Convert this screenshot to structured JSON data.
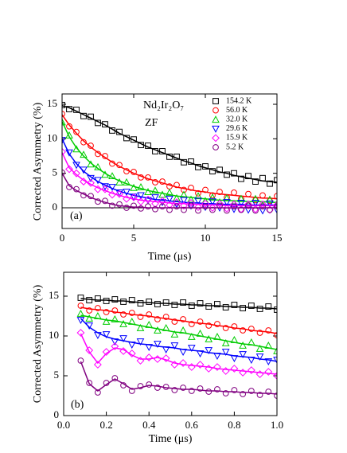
{
  "chart_data": [
    {
      "type": "scatter",
      "xlabel": "Time (μs)",
      "ylabel": "Corrected Asymmetry (%)",
      "annotations": [
        "Nd₂Ir₂O₇",
        "ZF",
        "(a)"
      ],
      "legend": "upper right",
      "xlim": [
        0,
        15
      ],
      "ylim": [
        -3,
        16.5
      ],
      "xticks": [
        0,
        5,
        10,
        15
      ],
      "yticks": [
        0,
        5,
        10,
        15
      ],
      "zero_line": true,
      "x": [
        0,
        0.5,
        1,
        1.5,
        2,
        2.5,
        3,
        3.5,
        4,
        4.5,
        5,
        5.5,
        6,
        6.5,
        7,
        7.5,
        8,
        8.5,
        9,
        9.5,
        10,
        10.5,
        11,
        11.5,
        12,
        12.5,
        13,
        13.5,
        14,
        14.5,
        15
      ],
      "series": [
        {
          "name": "154.2 K",
          "color": "#000000",
          "marker": "square",
          "values": [
            14.9,
            14.3,
            14.2,
            13.3,
            13.2,
            12.3,
            12.1,
            11.2,
            11.0,
            10.1,
            9.9,
            9.1,
            9.0,
            8.2,
            8.2,
            7.4,
            7.4,
            6.6,
            6.7,
            5.9,
            6.0,
            5.3,
            5.5,
            4.8,
            5.0,
            4.2,
            4.6,
            3.8,
            4.3,
            3.5,
            4.0
          ],
          "fit": [
            14.8,
            14.5,
            14.0,
            13.5,
            13.0,
            12.5,
            12.0,
            11.4,
            10.8,
            10.3,
            9.8,
            9.3,
            8.8,
            8.4,
            8.0,
            7.6,
            7.2,
            6.8,
            6.5,
            6.1,
            5.8,
            5.5,
            5.2,
            5.0,
            4.7,
            4.5,
            4.3,
            4.1,
            3.9,
            3.8,
            3.7
          ]
        },
        {
          "name": "56.0 K",
          "color": "#ff0000",
          "marker": "circle",
          "values": [
            13.6,
            11.8,
            11.0,
            9.5,
            9.0,
            7.8,
            7.5,
            6.4,
            6.2,
            5.3,
            5.2,
            4.4,
            4.4,
            3.7,
            3.8,
            3.1,
            3.3,
            2.6,
            2.9,
            2.1,
            2.6,
            1.8,
            2.3,
            1.5,
            2.2,
            1.3,
            2.0,
            1.1,
            1.8,
            1.0,
            1.7
          ],
          "fit": [
            13.5,
            12.0,
            10.8,
            9.7,
            8.8,
            8.0,
            7.3,
            6.6,
            6.0,
            5.5,
            5.0,
            4.6,
            4.2,
            3.9,
            3.6,
            3.3,
            3.0,
            2.8,
            2.6,
            2.4,
            2.3,
            2.1,
            2.0,
            1.9,
            1.8,
            1.7,
            1.6,
            1.5,
            1.4,
            1.4,
            1.3
          ]
        },
        {
          "name": "32.0 K",
          "color": "#00cc00",
          "marker": "triangle-up",
          "values": [
            12.4,
            10.5,
            8.5,
            7.7,
            6.3,
            5.9,
            4.8,
            4.6,
            3.7,
            3.7,
            2.9,
            3.0,
            2.3,
            2.5,
            1.9,
            2.2,
            1.4,
            1.9,
            1.2,
            1.7,
            1.0,
            1.5,
            0.8,
            1.4,
            0.6,
            1.3,
            0.5,
            1.3,
            0.4,
            1.2,
            0.5
          ],
          "fit": [
            12.5,
            10.3,
            8.7,
            7.5,
            6.5,
            5.7,
            5.0,
            4.4,
            3.9,
            3.5,
            3.1,
            2.8,
            2.5,
            2.3,
            2.1,
            1.9,
            1.7,
            1.6,
            1.5,
            1.4,
            1.3,
            1.2,
            1.1,
            1.1,
            1.0,
            1.0,
            0.9,
            0.9,
            0.9,
            0.8,
            0.8
          ]
        },
        {
          "name": "29.6 K",
          "color": "#0000ff",
          "marker": "triangle-down",
          "values": [
            9.8,
            8.0,
            6.2,
            5.5,
            4.3,
            4.0,
            3.1,
            3.0,
            2.2,
            2.3,
            1.6,
            1.8,
            1.1,
            1.5,
            0.8,
            1.3,
            0.5,
            1.1,
            0.3,
            1.0,
            0.1,
            0.9,
            0,
            0.8,
            -0.2,
            0.7,
            -0.3,
            0.7,
            -0.4,
            0.6,
            -0.3
          ],
          "fit": [
            10.0,
            7.8,
            6.4,
            5.3,
            4.5,
            3.8,
            3.3,
            2.8,
            2.4,
            2.1,
            1.8,
            1.6,
            1.4,
            1.2,
            1.1,
            1.0,
            0.9,
            0.8,
            0.7,
            0.7,
            0.6,
            0.6,
            0.5,
            0.5,
            0.5,
            0.5,
            0.4,
            0.4,
            0.4,
            0.4,
            0.4
          ]
        },
        {
          "name": "15.9 K",
          "color": "#ff00ff",
          "marker": "diamond",
          "values": [
            8.1,
            5.6,
            5.0,
            3.8,
            3.6,
            2.7,
            2.7,
            1.9,
            2.0,
            1.3,
            1.5,
            0.9,
            1.2,
            0.6,
            1.0,
            0.4,
            0.8,
            0.3,
            0.7,
            0.1,
            0.6,
            0,
            0.6,
            -0.1,
            0.5,
            -0.2,
            0.5,
            -0.2,
            0.5,
            -0.3,
            0.4
          ],
          "fit": [
            8.0,
            5.8,
            4.8,
            4.0,
            3.4,
            2.9,
            2.5,
            2.1,
            1.8,
            1.5,
            1.3,
            1.1,
            1.0,
            0.9,
            0.8,
            0.7,
            0.6,
            0.6,
            0.5,
            0.5,
            0.4,
            0.4,
            0.4,
            0.3,
            0.3,
            0.3,
            0.3,
            0.3,
            0.3,
            0.3,
            0.3
          ]
        },
        {
          "name": "5.2 K",
          "color": "#800080",
          "marker": "circle",
          "values": [
            5.1,
            3.0,
            2.7,
            1.8,
            1.7,
            0.9,
            1.0,
            0.3,
            0.5,
            0,
            0.3,
            -0.1,
            0.2,
            -0.2,
            0.2,
            -0.3,
            0.2,
            -0.3,
            0.3,
            -0.4,
            0.2,
            -0.3,
            0.3,
            -0.4,
            0.2,
            -0.3,
            0.3,
            -0.4,
            0.2,
            -0.3,
            0.2
          ],
          "fit": [
            5.0,
            3.2,
            2.5,
            2.0,
            1.5,
            1.1,
            0.8,
            0.5,
            0.3,
            0.2,
            0.1,
            0.1,
            0,
            0,
            0,
            0,
            0,
            0,
            0,
            0,
            0,
            0,
            0,
            0,
            0,
            0,
            0,
            0,
            0,
            0,
            0
          ]
        }
      ]
    },
    {
      "type": "scatter",
      "xlabel": "Time (μs)",
      "ylabel": "Corrected Asymmetry (%)",
      "annotations": [
        "(b)"
      ],
      "xlim": [
        0,
        1
      ],
      "ylim": [
        0,
        18
      ],
      "xticks": [
        {
          "value": 0,
          "label": "0.0"
        },
        0.2,
        0.4,
        0.6,
        0.8,
        {
          "value": 1,
          "label": "1.0"
        }
      ],
      "yticks": [
        0,
        5,
        10,
        15
      ],
      "x": [
        0.08,
        0.12,
        0.16,
        0.2,
        0.24,
        0.28,
        0.32,
        0.36,
        0.4,
        0.44,
        0.48,
        0.52,
        0.56,
        0.6,
        0.64,
        0.68,
        0.72,
        0.76,
        0.8,
        0.84,
        0.88,
        0.92,
        0.96,
        1.0
      ],
      "series": [
        {
          "color": "#000000",
          "marker": "square",
          "values": [
            14.8,
            14.5,
            14.7,
            14.4,
            14.6,
            14.3,
            14.5,
            14.1,
            14.3,
            14.0,
            14.2,
            13.9,
            14.2,
            13.8,
            14.1,
            13.7,
            14.0,
            13.6,
            13.9,
            13.5,
            13.8,
            13.4,
            13.7,
            13.3
          ],
          "fit": [
            14.7,
            14.6,
            14.5,
            14.5,
            14.4,
            14.4,
            14.3,
            14.2,
            14.2,
            14.1,
            14.1,
            14.0,
            14.0,
            13.9,
            13.9,
            13.8,
            13.8,
            13.7,
            13.7,
            13.6,
            13.6,
            13.5,
            13.5,
            13.4
          ]
        },
        {
          "color": "#ff0000",
          "marker": "circle",
          "values": [
            13.8,
            13.2,
            13.5,
            13.0,
            13.2,
            12.7,
            12.9,
            12.4,
            12.7,
            12.1,
            12.4,
            11.8,
            12.1,
            11.5,
            11.8,
            11.3,
            11.5,
            11.0,
            11.2,
            10.7,
            10.9,
            10.4,
            10.7,
            10.1
          ],
          "fit": [
            13.6,
            13.4,
            13.3,
            13.2,
            13.0,
            12.9,
            12.7,
            12.6,
            12.5,
            12.3,
            12.2,
            12.0,
            11.9,
            11.7,
            11.6,
            11.5,
            11.3,
            11.2,
            11.0,
            10.9,
            10.7,
            10.6,
            10.5,
            10.3
          ]
        },
        {
          "color": "#00cc00",
          "marker": "triangle-up",
          "values": [
            12.8,
            12.2,
            12.5,
            11.8,
            12.1,
            11.5,
            11.8,
            11.0,
            11.4,
            10.7,
            11.0,
            10.2,
            10.7,
            9.9,
            10.3,
            9.6,
            9.9,
            9.1,
            9.5,
            8.8,
            9.2,
            8.4,
            8.8,
            8.1
          ],
          "fit": [
            12.6,
            12.4,
            12.2,
            12.0,
            11.9,
            11.7,
            11.5,
            11.3,
            11.1,
            10.9,
            10.7,
            10.5,
            10.4,
            10.2,
            10.0,
            9.8,
            9.6,
            9.4,
            9.2,
            9.0,
            8.9,
            8.7,
            8.5,
            8.3
          ]
        },
        {
          "color": "#0000ff",
          "marker": "triangle-down",
          "values": [
            12.0,
            11.3,
            10.1,
            10.2,
            9.3,
            9.7,
            8.9,
            9.3,
            8.6,
            9.0,
            8.3,
            8.8,
            8.0,
            8.5,
            7.8,
            8.2,
            7.5,
            8.0,
            7.2,
            7.7,
            7.0,
            7.4,
            6.8,
            7.0
          ],
          "fit": [
            12.2,
            11.1,
            10.4,
            9.9,
            9.6,
            9.4,
            9.2,
            9.0,
            8.9,
            8.7,
            8.6,
            8.5,
            8.3,
            8.2,
            8.1,
            7.9,
            7.8,
            7.7,
            7.5,
            7.4,
            7.3,
            7.1,
            7.0,
            6.8
          ]
        },
        {
          "color": "#ff00ff",
          "marker": "diamond",
          "values": [
            10.4,
            8.2,
            6.4,
            8.0,
            8.7,
            8.1,
            7.8,
            6.9,
            7.3,
            7.1,
            7.2,
            6.4,
            6.6,
            6.1,
            6.4,
            5.9,
            6.1,
            5.6,
            5.9,
            5.4,
            5.7,
            5.2,
            5.5,
            5.0
          ],
          "fit": [
            10.3,
            8.0,
            6.6,
            7.8,
            8.5,
            8.3,
            7.6,
            7.1,
            7.1,
            7.3,
            7.0,
            6.6,
            6.4,
            6.3,
            6.2,
            6.1,
            5.9,
            5.8,
            5.7,
            5.6,
            5.5,
            5.4,
            5.3,
            5.2
          ]
        },
        {
          "color": "#800080",
          "marker": "circle",
          "values": [
            6.9,
            4.1,
            2.9,
            4.1,
            4.7,
            3.8,
            3.1,
            3.7,
            3.9,
            3.5,
            3.6,
            3.2,
            3.5,
            3.1,
            3.4,
            3.0,
            3.3,
            2.8,
            3.2,
            2.7,
            3.1,
            2.6,
            3.0,
            2.5
          ],
          "fit": [
            6.8,
            4.0,
            3.1,
            3.9,
            4.6,
            4.0,
            3.3,
            3.5,
            3.8,
            3.7,
            3.5,
            3.4,
            3.3,
            3.3,
            3.2,
            3.1,
            3.1,
            3.0,
            3.0,
            2.9,
            2.9,
            2.8,
            2.8,
            2.7
          ]
        }
      ]
    }
  ]
}
